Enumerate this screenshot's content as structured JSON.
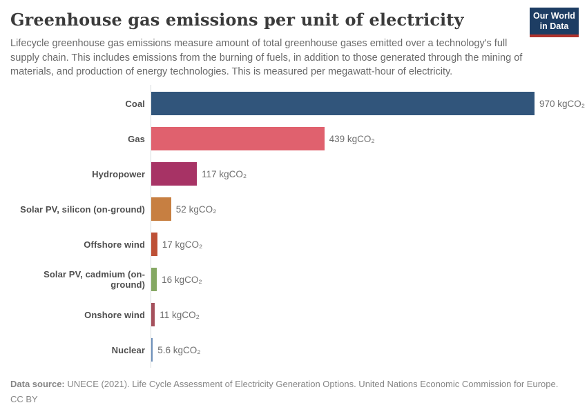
{
  "header": {
    "title": "Greenhouse gas emissions per unit of electricity",
    "subtitle": "Lifecycle greenhouse gas emissions measure amount of total greenhouse gases emitted over a technology's full supply chain. This includes emissions from the burning of fuels, in addition to those generated through the mining of materials, and production of energy technologies. This is measured per megawatt-hour of electricity.",
    "logo": {
      "line1": "Our World",
      "line2": "in Data",
      "bg_color": "#1d3d63",
      "accent_color": "#b0332c"
    }
  },
  "chart_data": {
    "type": "bar",
    "orientation": "horizontal",
    "title": "Greenhouse gas emissions per unit of electricity",
    "unit": "kgCO₂",
    "xlim": [
      0,
      970
    ],
    "grid": false,
    "legend": false,
    "categories": [
      "Coal",
      "Gas",
      "Hydropower",
      "Solar PV, silicon (on-ground)",
      "Offshore wind",
      "Solar PV, cadmium (on-ground)",
      "Onshore wind",
      "Nuclear"
    ],
    "values": [
      970,
      439,
      117,
      52,
      17,
      16,
      11,
      5.6
    ],
    "value_labels": [
      "970 kgCO₂",
      "439 kgCO₂",
      "117 kgCO₂",
      "52 kgCO₂",
      "17 kgCO₂",
      "16 kgCO₂",
      "11 kgCO₂",
      "5.6 kgCO₂"
    ],
    "colors": [
      "#31557b",
      "#e0616e",
      "#a73365",
      "#c77f41",
      "#bd5036",
      "#85a863",
      "#a5505c",
      "#6d8fb9"
    ]
  },
  "footer": {
    "source_label": "Data source:",
    "source_text": " UNECE (2021). Life Cycle Assessment of Electricity Generation Options. United Nations Economic Commission for Europe.",
    "license": "CC BY"
  }
}
